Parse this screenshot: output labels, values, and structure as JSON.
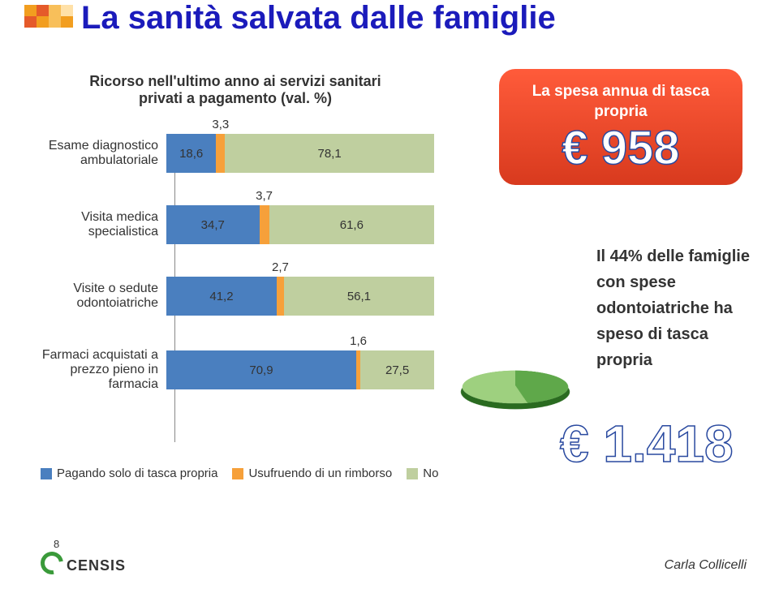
{
  "deco_colors": [
    "#f29e1f",
    "#e55a2a",
    "#f8bf5a",
    "#ffe1a8",
    "#e55a2a",
    "#f29e1f",
    "#f8bf5a",
    "#f29e1f"
  ],
  "title": {
    "text": "La sanità salvata dalle famiglie",
    "color": "#1b1bbb",
    "fontsize": 40
  },
  "subtitle": {
    "text": "Ricorso nell'ultimo anno ai servizi sanitari privati a pagamento (val. %)",
    "fontsize": 18
  },
  "chart": {
    "type": "stacked-bar-horizontal",
    "label_fontsize": 16,
    "value_fontsize": 15,
    "colors": {
      "p1": "#4a7fbf",
      "p2": "#f6a03a",
      "p3": "#bfcf9f"
    },
    "rows": [
      {
        "label": "Esame diagnostico ambulatoriale",
        "v1": 18.6,
        "v2": 3.3,
        "v3": 78.1,
        "l1": "18,6",
        "l2": "3,3",
        "l3": "78,1"
      },
      {
        "label": "Visita medica specialistica",
        "v1": 34.7,
        "v2": 3.7,
        "v3": 61.6,
        "l1": "34,7",
        "l2": "3,7",
        "l3": "61,6"
      },
      {
        "label": "Visite o sedute odontoiatriche",
        "v1": 41.2,
        "v2": 2.7,
        "v3": 56.1,
        "l1": "41,2",
        "l2": "2,7",
        "l3": "56,1"
      },
      {
        "label": "Farmaci acquistati a prezzo pieno in farmacia",
        "v1": 70.9,
        "v2": 1.6,
        "v3": 27.5,
        "l1": "70,9",
        "l2": "1,6",
        "l3": "27,5"
      }
    ],
    "legend": [
      {
        "label": "Pagando solo di tasca propria",
        "key": "p1"
      },
      {
        "label": "Usufruendo di un rimborso",
        "key": "p2"
      },
      {
        "label": "No",
        "key": "p3"
      }
    ]
  },
  "pill": {
    "bg_gradient": [
      "#ff5b3a",
      "#d83a1e"
    ],
    "text": "La spesa annua di tasca propria",
    "value": "€ 958",
    "value_fontsize": 58
  },
  "pie": {
    "slice_pct": 44,
    "slice_color": "#5fa84a",
    "rest_color": "#9ed07f"
  },
  "side": {
    "text": "Il 44% delle famiglie con spese odontoiatriche ha speso di tasca propria",
    "value": "€ 1.418",
    "value_fontsize": 64
  },
  "footer": {
    "page": "8",
    "brand": "CENSIS",
    "author": "Carla Collicelli"
  }
}
